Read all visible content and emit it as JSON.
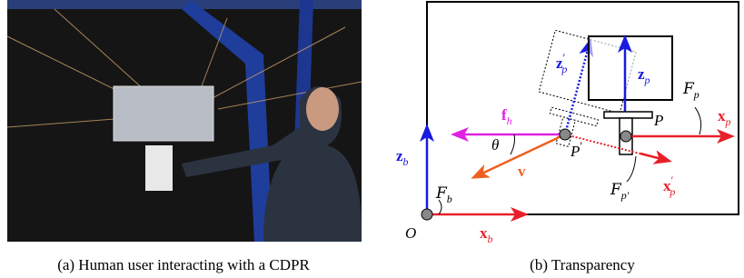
{
  "captions": [
    "(a) Human user interacting with a CDPR",
    "(b) Transparency"
  ],
  "diagram_labels": [
    {
      "base": "z",
      "sup": "′",
      "sub": "p"
    },
    {
      "base": "z",
      "sub": "p"
    },
    {
      "base": "F",
      "sub": "p"
    },
    {
      "base": "x",
      "sub": "p"
    },
    {
      "base": "P"
    },
    {
      "base": "f",
      "sub": "h"
    },
    {
      "base": "θ"
    },
    {
      "base": "P",
      "sup": "′"
    },
    {
      "base": "v"
    },
    {
      "base": "z",
      "sub": "b"
    },
    {
      "base": "F",
      "sub": "b"
    },
    {
      "base": "F",
      "sub": "p′"
    },
    {
      "base": "x",
      "sup": "′",
      "sub": "p"
    },
    {
      "base": "O"
    },
    {
      "base": "x",
      "sub": "b"
    }
  ]
}
